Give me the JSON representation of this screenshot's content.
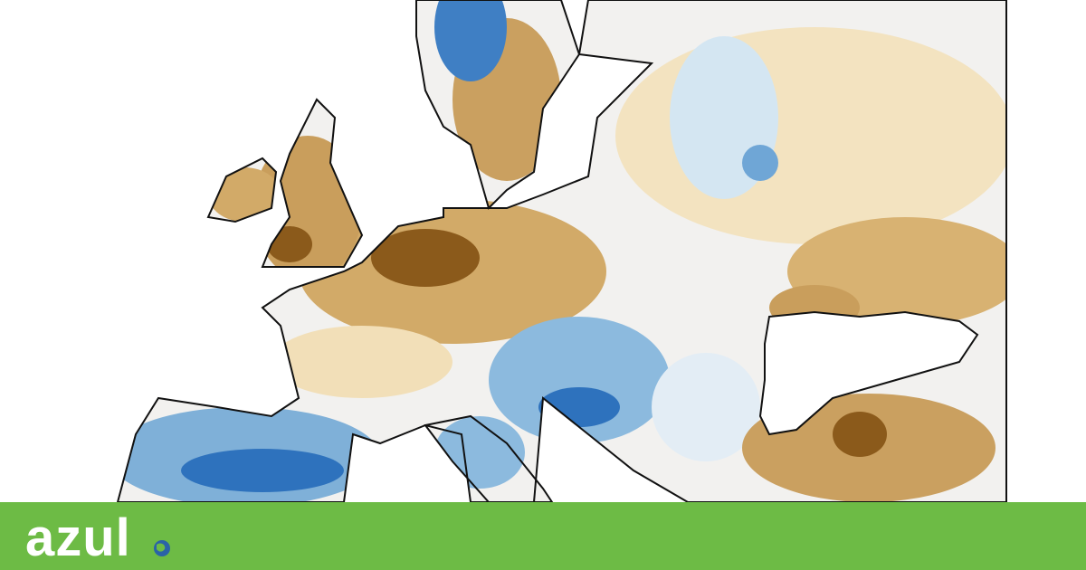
{
  "logo": {
    "text": "azul"
  }
}
